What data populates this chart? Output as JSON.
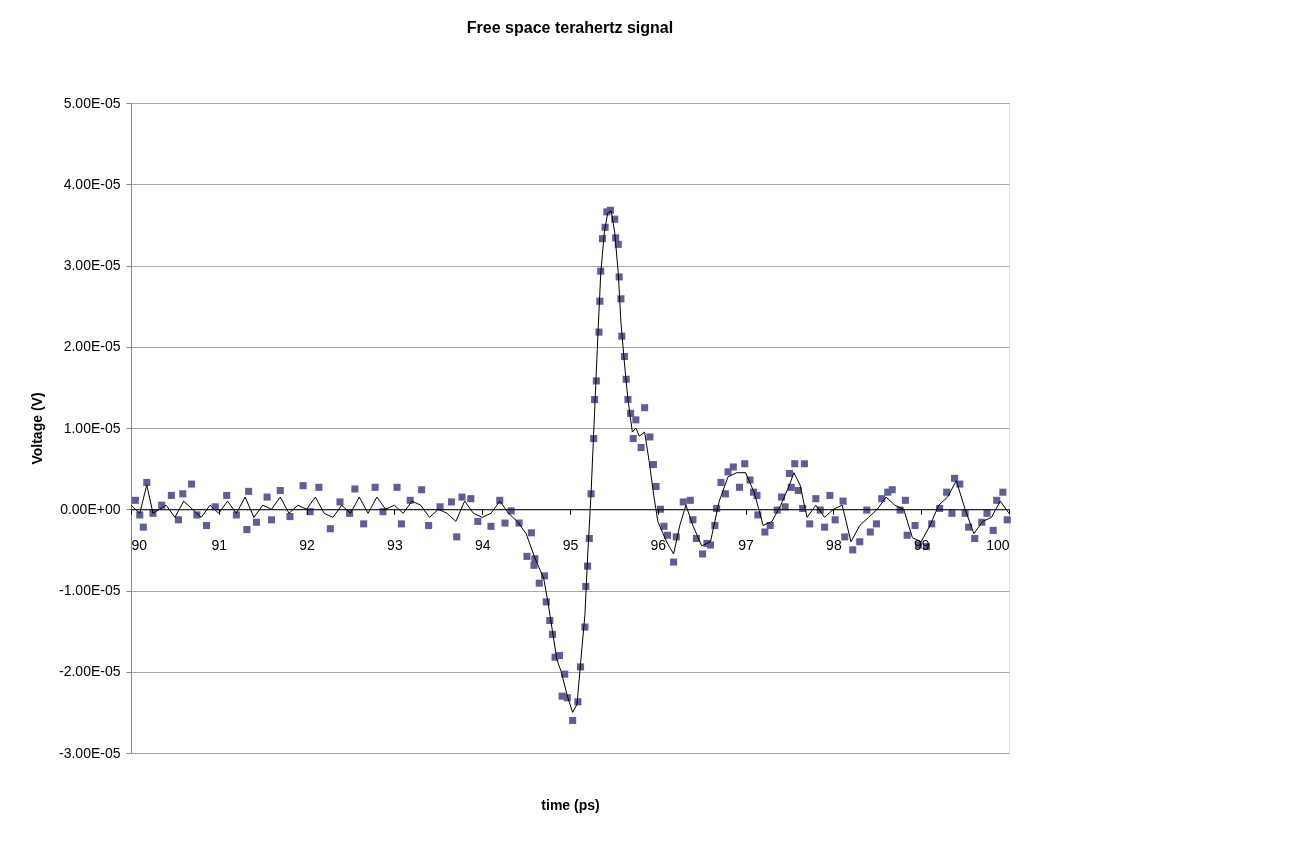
{
  "chart_data": {
    "type": "scatter",
    "title": "Free space terahertz signal",
    "xlabel": "time (ps)",
    "ylabel": "Voltage (V)",
    "xlim": [
      90,
      100
    ],
    "xticks": [
      90,
      91,
      92,
      93,
      94,
      95,
      96,
      97,
      98,
      99,
      100
    ],
    "ylim": [
      -3e-05,
      5e-05
    ],
    "yticks": [
      {
        "value": -3e-05,
        "label": "-3.00E-05"
      },
      {
        "value": -2e-05,
        "label": "-2.00E-05"
      },
      {
        "value": -1e-05,
        "label": "-1.00E-05"
      },
      {
        "value": 0,
        "label": "0.00E+00"
      },
      {
        "value": 1e-05,
        "label": "1.00E-05"
      },
      {
        "value": 2e-05,
        "label": "2.00E-05"
      },
      {
        "value": 3e-05,
        "label": "3.00E-05"
      },
      {
        "value": 4e-05,
        "label": "4.00E-05"
      },
      {
        "value": 5e-05,
        "label": "5.00E-05"
      }
    ],
    "grid": "y",
    "series": [
      {
        "marker": "square",
        "color": "#5f5f97",
        "x": [
          90.05,
          90.1,
          90.14,
          90.18,
          90.25,
          90.35,
          90.46,
          90.54,
          90.59,
          90.69,
          90.75,
          90.86,
          90.96,
          91.09,
          91.2,
          91.32,
          91.34,
          91.43,
          91.55,
          91.6,
          91.7,
          91.81,
          91.96,
          92.04,
          92.14,
          92.27,
          92.38,
          92.49,
          92.55,
          92.65,
          92.78,
          92.87,
          93.03,
          93.08,
          93.18,
          93.31,
          93.39,
          93.52,
          93.65,
          93.71,
          93.77,
          93.87,
          93.95,
          94.1,
          94.2,
          94.26,
          94.33,
          94.42,
          94.51,
          94.56,
          94.59,
          94.6,
          94.65,
          94.71,
          94.73,
          94.77,
          94.8,
          94.83,
          94.88,
          94.91,
          94.94,
          94.97,
          95.03,
          95.09,
          95.12,
          95.17,
          95.18,
          95.2,
          95.22,
          95.24,
          95.27,
          95.28,
          95.3,
          95.33,
          95.34,
          95.35,
          95.37,
          95.4,
          95.42,
          95.46,
          95.51,
          95.52,
          95.55,
          95.56,
          95.58,
          95.59,
          95.62,
          95.64,
          95.66,
          95.69,
          95.72,
          95.75,
          95.81,
          95.85,
          95.91,
          95.95,
          95.98,
          96.03,
          96.07,
          96.11,
          96.18,
          96.21,
          96.29,
          96.37,
          96.4,
          96.44,
          96.51,
          96.56,
          96.6,
          96.65,
          96.67,
          96.72,
          96.77,
          96.8,
          96.86,
          96.93,
          96.99,
          97.05,
          97.09,
          97.13,
          97.14,
          97.22,
          97.28,
          97.36,
          97.41,
          97.45,
          97.5,
          97.52,
          97.56,
          97.6,
          97.65,
          97.67,
          97.73,
          97.8,
          97.85,
          97.9,
          97.96,
          98.02,
          98.11,
          98.13,
          98.22,
          98.3,
          98.38,
          98.42,
          98.49,
          98.55,
          98.62,
          98.67,
          98.76,
          98.82,
          98.84,
          98.93,
          98.97,
          99.06,
          99.12,
          99.21,
          99.29,
          99.35,
          99.38,
          99.44,
          99.5,
          99.54,
          99.61,
          99.69,
          99.75,
          99.82,
          99.86,
          99.93,
          99.98
        ],
        "values": [
          1.1e-06,
          -7e-07,
          -2.2e-06,
          3.3e-06,
          -5e-07,
          5e-07,
          1.7e-06,
          -1.3e-06,
          1.9e-06,
          3.1e-06,
          -7e-07,
          -2e-06,
          3e-07,
          1.7e-06,
          -7e-07,
          -2.5e-06,
          2.2e-06,
          -1.6e-06,
          1.5e-06,
          -1.3e-06,
          2.3e-06,
          -9e-07,
          2.9e-06,
          -3e-07,
          2.7e-06,
          -2.4e-06,
          9e-07,
          -5e-07,
          2.5e-06,
          -1.8e-06,
          2.7e-06,
          -3e-07,
          2.7e-06,
          -1.8e-06,
          1.1e-06,
          2.4e-06,
          -2e-06,
          3e-07,
          9e-07,
          -3.4e-06,
          1.5e-06,
          1.3e-06,
          -1.5e-06,
          -2.1e-06,
          1.1e-06,
          -1.7e-06,
          -2e-07,
          -1.7e-06,
          -5.8e-06,
          -2.9e-06,
          -6.9e-06,
          -6.1e-06,
          -9.1e-06,
          -8.2e-06,
          -1.14e-05,
          -1.37e-05,
          -1.54e-05,
          -1.82e-05,
          -1.8e-05,
          -2.3e-05,
          -2.03e-05,
          -2.32e-05,
          -2.6e-05,
          -2.37e-05,
          -1.94e-05,
          -1.45e-05,
          -9.5e-06,
          -7e-06,
          -3.6e-06,
          1.9e-06,
          8.7e-06,
          1.35e-05,
          1.58e-05,
          2.18e-05,
          2.56e-05,
          2.93e-05,
          3.33e-05,
          3.47e-05,
          3.66e-05,
          3.68e-05,
          3.57e-05,
          3.34e-05,
          3.26e-05,
          2.86e-05,
          2.59e-05,
          2.13e-05,
          1.88e-05,
          1.6e-05,
          1.35e-05,
          1.18e-05,
          8.7e-06,
          1.1e-05,
          7.6e-06,
          1.25e-05,
          8.9e-06,
          5.5e-06,
          2.8e-06,
          0.0,
          -2.1e-06,
          -3.2e-06,
          -6.5e-06,
          -3.4e-06,
          9e-07,
          1.1e-06,
          -1.3e-06,
          -3.6e-06,
          -5.5e-06,
          -4.2e-06,
          -4.4e-06,
          -2e-06,
          1e-07,
          3.3e-06,
          1.9e-06,
          4.6e-06,
          5.2e-06,
          2.7e-06,
          5.6e-06,
          3.6e-06,
          2.1e-06,
          1.7e-06,
          -7e-07,
          -2.8e-06,
          -2e-06,
          -1e-07,
          1.5e-06,
          3e-07,
          4.4e-06,
          2.7e-06,
          5.6e-06,
          2.3e-06,
          1e-07,
          5.6e-06,
          -1.8e-06,
          1.3e-06,
          -1e-07,
          -2.2e-06,
          1.7e-06,
          -1.3e-06,
          1e-06,
          -3.4e-06,
          -5e-06,
          -4e-06,
          -1e-07,
          -2.8e-06,
          -1.8e-06,
          1.3e-06,
          2.1e-06,
          2.4e-06,
          -1e-07,
          1.1e-06,
          -3.2e-06,
          -2e-06,
          -4.4e-06,
          -4.6e-06,
          -1.8e-06,
          1e-07,
          2.1e-06,
          -5e-07,
          3.8e-06,
          3.1e-06,
          -5e-07,
          -2.2e-06,
          -3.6e-06,
          -1.6e-06,
          -5e-07,
          -2.6e-06,
          1.1e-06,
          2.1e-06,
          -1.3e-06
        ]
      },
      {
        "type": "line",
        "marker": "none",
        "line_style": "solid",
        "color": "#000000",
        "x": [
          90.0,
          90.1,
          90.18,
          90.25,
          90.4,
          90.5,
          90.6,
          90.7,
          90.8,
          90.9,
          91.0,
          91.1,
          91.2,
          91.3,
          91.4,
          91.5,
          91.6,
          91.7,
          91.8,
          91.9,
          92.0,
          92.1,
          92.2,
          92.3,
          92.4,
          92.5,
          92.6,
          92.7,
          92.8,
          92.9,
          93.0,
          93.1,
          93.2,
          93.3,
          93.4,
          93.5,
          93.6,
          93.7,
          93.8,
          93.9,
          94.0,
          94.1,
          94.2,
          94.3,
          94.4,
          94.5,
          94.6,
          94.7,
          94.75,
          94.8,
          94.85,
          94.9,
          94.97,
          95.03,
          95.08,
          95.12,
          95.17,
          95.2,
          95.24,
          95.28,
          95.32,
          95.35,
          95.39,
          95.43,
          95.47,
          95.51,
          95.55,
          95.58,
          95.62,
          95.66,
          95.71,
          95.75,
          95.79,
          95.85,
          95.9,
          95.95,
          96.0,
          96.1,
          96.18,
          96.25,
          96.32,
          96.4,
          96.5,
          96.6,
          96.7,
          96.8,
          96.9,
          97.0,
          97.1,
          97.2,
          97.3,
          97.4,
          97.5,
          97.55,
          97.62,
          97.7,
          97.8,
          97.9,
          98.0,
          98.1,
          98.2,
          98.3,
          98.4,
          98.5,
          98.6,
          98.7,
          98.8,
          98.9,
          99.0,
          99.1,
          99.2,
          99.3,
          99.4,
          99.5,
          99.6,
          99.7,
          99.8,
          99.9,
          100.0
        ],
        "values": [
          5e-07,
          -5e-07,
          3e-06,
          -5e-07,
          5e-07,
          -1e-06,
          1e-06,
          0.0,
          -1e-06,
          5e-07,
          -5e-07,
          1e-06,
          -5e-07,
          1.5e-06,
          -1e-06,
          5e-07,
          0.0,
          1.5e-06,
          -5e-07,
          5e-07,
          0.0,
          1.5e-06,
          -5e-07,
          -1e-06,
          5e-07,
          -5e-07,
          1.5e-06,
          -5e-07,
          1.5e-06,
          0.0,
          5e-07,
          -5e-07,
          1e-06,
          5e-07,
          -1e-06,
          0.0,
          -5e-07,
          -1.5e-06,
          1e-06,
          -5e-07,
          -1e-06,
          -5e-07,
          1e-06,
          -5e-07,
          -1.5e-06,
          -3e-06,
          -6e-06,
          -8.5e-06,
          -1.15e-05,
          -1.5e-05,
          -1.85e-05,
          -2e-05,
          -2.3e-05,
          -2.5e-05,
          -2.4e-05,
          -1.9e-05,
          -1.3e-05,
          -6e-06,
          2e-06,
          1.2e-05,
          2.2e-05,
          2.9e-05,
          3.4e-05,
          3.65e-05,
          3.67e-05,
          3.4e-05,
          2.9e-05,
          2.3e-05,
          1.8e-05,
          1.35e-05,
          9.5e-06,
          1e-05,
          9e-06,
          9.5e-06,
          6e-06,
          2e-06,
          -1.5e-06,
          -4e-06,
          -5.5e-06,
          -2e-06,
          5e-07,
          -2e-06,
          -4.5e-06,
          -4e-06,
          1e-06,
          4e-06,
          4.5e-06,
          4.5e-06,
          2e-06,
          -2e-06,
          -1.5e-06,
          5e-07,
          3e-06,
          4.5e-06,
          3e-06,
          -1e-06,
          5e-07,
          -1e-06,
          0.0,
          5e-07,
          -4e-06,
          -2e-06,
          -1e-06,
          0.0,
          1.5e-06,
          5e-07,
          0.0,
          -3.5e-06,
          -4e-06,
          -2e-06,
          5e-07,
          1.5e-06,
          3.5e-06,
          0.0,
          -3e-06,
          -1.5e-06,
          -1e-06,
          1e-06,
          -5e-07
        ]
      }
    ]
  }
}
